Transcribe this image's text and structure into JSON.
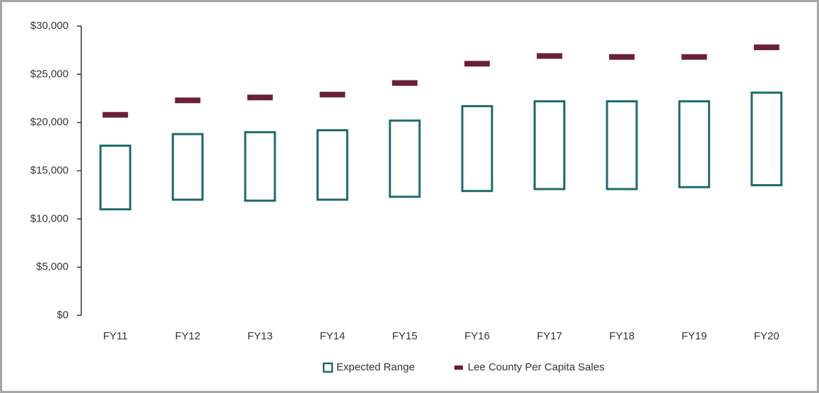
{
  "chart_data": {
    "type": "range_bar",
    "categories": [
      "FY11",
      "FY12",
      "FY13",
      "FY14",
      "FY15",
      "FY16",
      "FY17",
      "FY18",
      "FY19",
      "FY20"
    ],
    "series": [
      {
        "name": "Expected Range",
        "color": "#1f6b6b",
        "low": [
          11000,
          12000,
          11900,
          12000,
          12300,
          12900,
          13100,
          13100,
          13300,
          13500
        ],
        "high": [
          17600,
          18800,
          19000,
          19200,
          20200,
          21700,
          22200,
          22200,
          22200,
          23100
        ]
      },
      {
        "name": "Lee County Per Capita Sales",
        "color": "#6b1f3a",
        "values": [
          20800,
          22300,
          22600,
          22900,
          24100,
          26100,
          26900,
          26800,
          26800,
          27800
        ]
      }
    ],
    "ylim": [
      0,
      30000
    ],
    "yticks": [
      {
        "value": 0,
        "label": "$0"
      },
      {
        "value": 5000,
        "label": "$5,000"
      },
      {
        "value": 10000,
        "label": "$10,000"
      },
      {
        "value": 15000,
        "label": "$15,000"
      },
      {
        "value": 20000,
        "label": "$20,000"
      },
      {
        "value": 25000,
        "label": "$25,000"
      },
      {
        "value": 30000,
        "label": "$30,000"
      }
    ],
    "grid": false,
    "legend": "bottom"
  }
}
